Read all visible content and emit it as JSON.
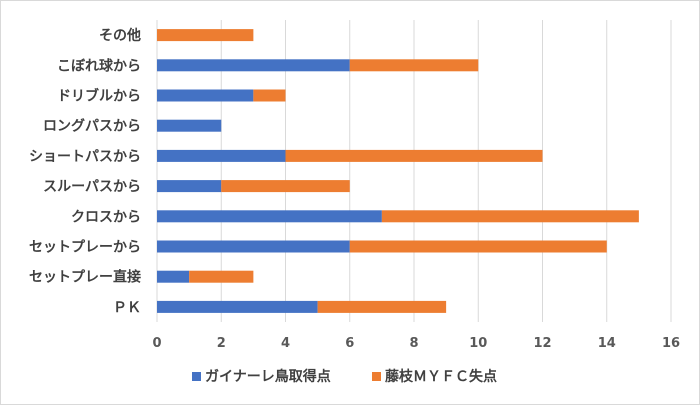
{
  "chart_data": {
    "type": "bar",
    "orientation": "horizontal",
    "stacked": true,
    "categories": [
      "その他",
      "こぼれ球から",
      "ドリブルから",
      "ロングパスから",
      "ショートパスから",
      "スルーパスから",
      "クロスから",
      "セットプレーから",
      "セットプレー直接",
      "ＰＫ"
    ],
    "series": [
      {
        "name": "ガイナーレ鳥取得点",
        "color": "#4472c4",
        "values": [
          0,
          6,
          3,
          2,
          4,
          2,
          7,
          6,
          1,
          5
        ]
      },
      {
        "name": "藤枝ＭＹＦＣ失点",
        "color": "#ed7d31",
        "values": [
          3,
          4,
          1,
          0,
          8,
          4,
          8,
          8,
          2,
          4
        ]
      }
    ],
    "xticks": [
      0,
      2,
      4,
      6,
      8,
      10,
      12,
      14,
      16
    ],
    "xlim": [
      0,
      16
    ],
    "grid": true,
    "legend_position": "bottom"
  }
}
